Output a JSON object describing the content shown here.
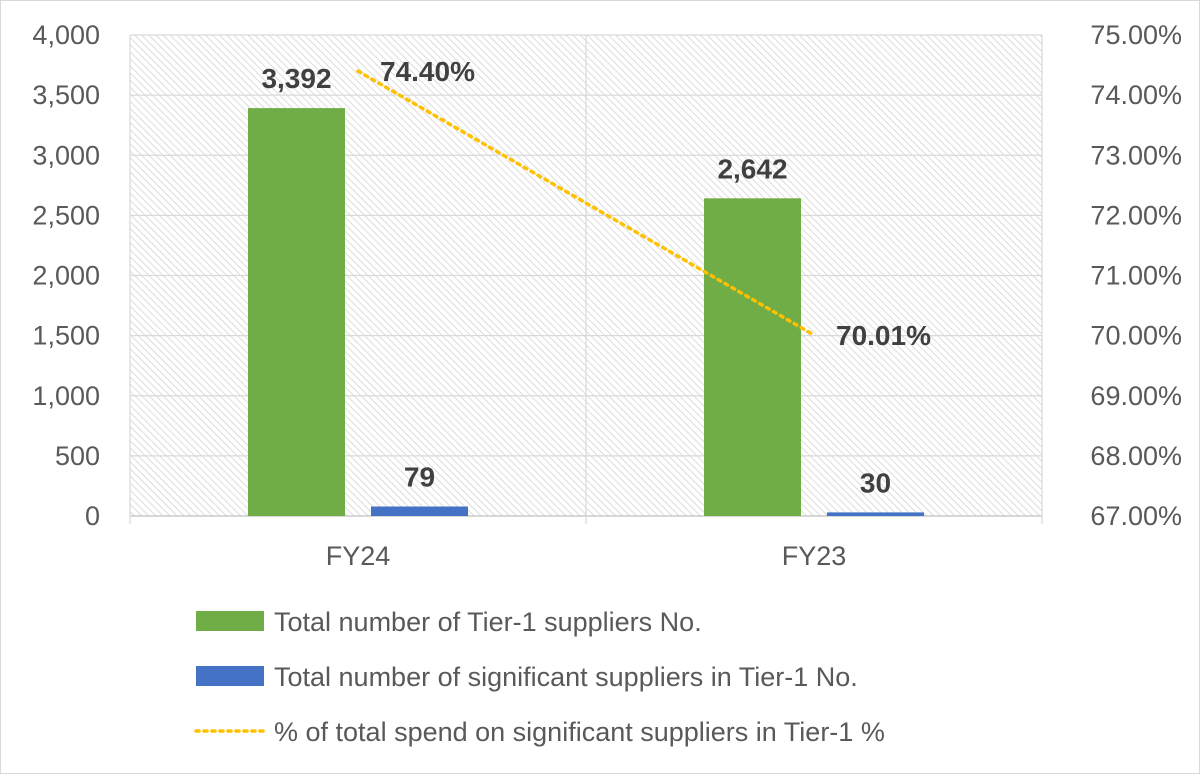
{
  "chart_data": {
    "type": "bar",
    "categories": [
      "FY24",
      "FY23"
    ],
    "series": [
      {
        "name": "Total number of Tier-1 suppliers No.",
        "type": "bar",
        "axis": "left",
        "values": [
          3392,
          2642
        ],
        "labels": [
          "3,392",
          "2,642"
        ],
        "color": "#70AD47"
      },
      {
        "name": "Total number of significant suppliers in Tier-1 No.",
        "type": "bar",
        "axis": "left",
        "values": [
          79,
          30
        ],
        "labels": [
          "79",
          "30"
        ],
        "color": "#4472C4"
      },
      {
        "name": "% of total spend on significant suppliers in Tier-1 %",
        "type": "line",
        "axis": "right",
        "values": [
          74.4,
          70.01
        ],
        "labels": [
          "74.40%",
          "70.01%"
        ],
        "color": "#FFC000",
        "line_style": "dotted"
      }
    ],
    "y_left": {
      "min": 0,
      "max": 4000,
      "ticks": [
        "0",
        "500",
        "1,000",
        "1,500",
        "2,000",
        "2,500",
        "3,000",
        "3,500",
        "4,000"
      ]
    },
    "y_right": {
      "min": 67,
      "max": 75,
      "ticks": [
        "67.00%",
        "68.00%",
        "69.00%",
        "70.00%",
        "71.00%",
        "72.00%",
        "73.00%",
        "74.00%",
        "75.00%"
      ]
    },
    "grid": true,
    "plot_background": "hatched",
    "legend_position": "bottom"
  }
}
